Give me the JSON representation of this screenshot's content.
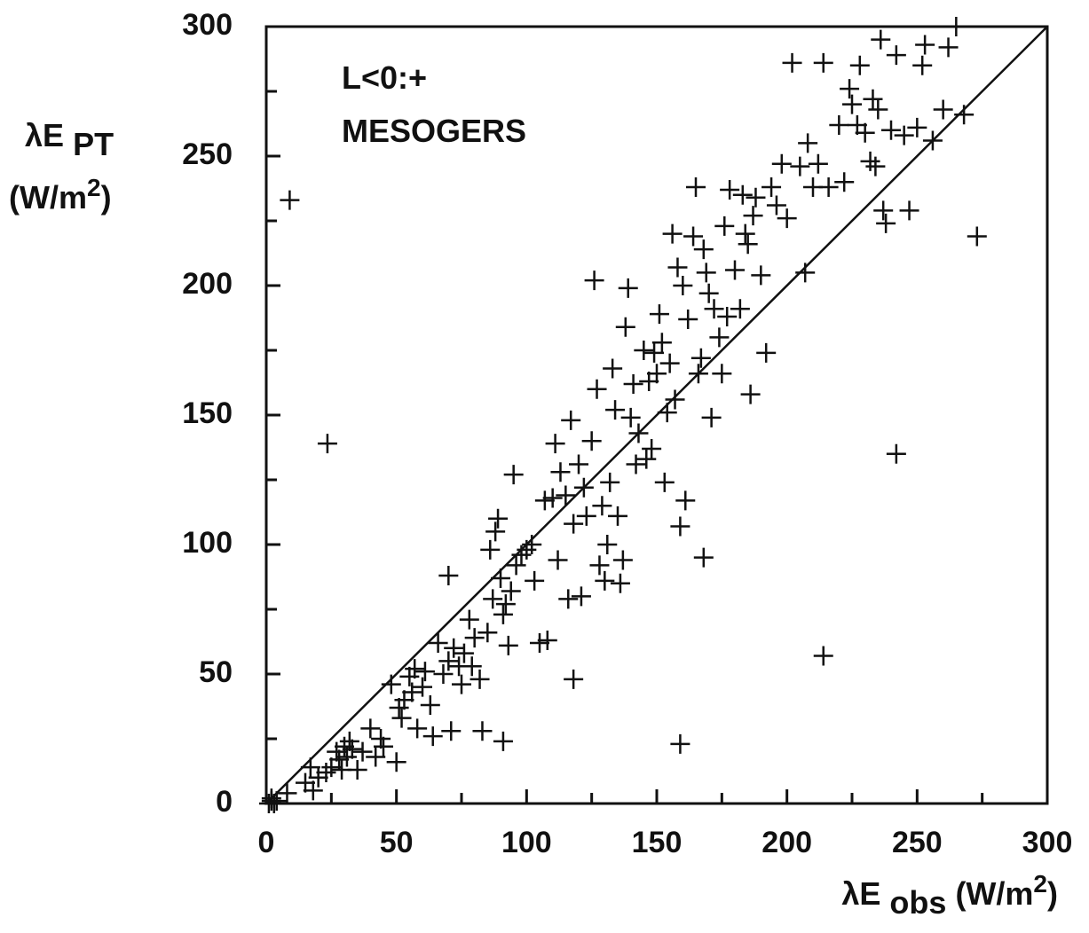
{
  "chart_data": {
    "type": "scatter",
    "annotations": [
      "L<0:+",
      "MESOGERS"
    ],
    "ylabel": [
      "λE",
      "PT",
      "(W/m",
      "2",
      ")"
    ],
    "xlabel": [
      "λE",
      "obs",
      "(W/m",
      "2",
      ")"
    ],
    "color": "#111111",
    "xlim": [
      0,
      300
    ],
    "ylim": [
      0,
      300
    ],
    "xticks": [
      0,
      50,
      100,
      150,
      200,
      250,
      300
    ],
    "yticks": [
      0,
      50,
      100,
      150,
      200,
      250,
      300
    ],
    "xminor_ticks": [
      25,
      75,
      125,
      175,
      225,
      275
    ],
    "yminor_ticks": [
      25,
      75,
      125,
      175,
      225,
      275
    ],
    "x": [
      9,
      23.5,
      242,
      214,
      159,
      273,
      168,
      118,
      1,
      2,
      3,
      4,
      2,
      8,
      15,
      17,
      18,
      20,
      23,
      25,
      27,
      28,
      29,
      30,
      31,
      32,
      33,
      35,
      37,
      40,
      42,
      44,
      45,
      48,
      50,
      51,
      52,
      53,
      55,
      56,
      57,
      58,
      60,
      61,
      63,
      64,
      66,
      68,
      70,
      70,
      71,
      72,
      74,
      75,
      76,
      78,
      79,
      80,
      82,
      83,
      85,
      86,
      87,
      88,
      89,
      90,
      91,
      91,
      92,
      93,
      94,
      95,
      96,
      98,
      100,
      102,
      103,
      105,
      107,
      108,
      110,
      111,
      112,
      113,
      115,
      116,
      117,
      118,
      120,
      121,
      122,
      123,
      125,
      126,
      127,
      128,
      129,
      130,
      131,
      132,
      133,
      134,
      135,
      136,
      137,
      138,
      139,
      140,
      141,
      142,
      143,
      145,
      146,
      147,
      148,
      149,
      150,
      151,
      152,
      153,
      154,
      155,
      156,
      157,
      158,
      159,
      160,
      161,
      162,
      164,
      165,
      166,
      167,
      168,
      169,
      170,
      171,
      172,
      174,
      175,
      176,
      177,
      178,
      180,
      182,
      183,
      184,
      185,
      186,
      187,
      188,
      190,
      192,
      194,
      196,
      198,
      200,
      202,
      205,
      207,
      208,
      210,
      212,
      214,
      216,
      220,
      222,
      224,
      225,
      227,
      228,
      230,
      232,
      233,
      234,
      235,
      236,
      237,
      238,
      240,
      242,
      245,
      247,
      250,
      252,
      253,
      256,
      260,
      262,
      265,
      268
    ],
    "values": [
      233,
      139,
      135,
      57,
      23,
      219,
      95,
      48,
      0,
      1,
      0,
      1,
      2,
      4,
      8,
      14,
      5,
      10,
      12,
      14,
      20,
      17,
      13,
      22,
      18,
      24,
      21,
      13,
      20,
      29,
      18,
      25,
      22,
      46,
      16,
      37,
      33,
      40,
      49,
      43,
      52,
      29,
      45,
      51,
      38,
      26,
      62,
      50,
      55,
      88,
      28,
      60,
      53,
      46,
      58,
      71,
      53,
      64,
      48,
      28,
      66,
      98,
      79,
      105,
      110,
      87,
      73,
      24,
      77,
      61,
      82,
      127,
      92,
      96,
      98,
      100,
      86,
      62,
      117,
      63,
      118,
      139,
      94,
      128,
      119,
      79,
      148,
      108,
      131,
      80,
      122,
      111,
      140,
      202,
      160,
      92,
      115,
      86,
      100,
      124,
      168,
      152,
      111,
      85,
      94,
      184,
      199,
      149,
      162,
      131,
      143,
      175,
      133,
      163,
      137,
      174,
      166,
      189,
      178,
      124,
      151,
      170,
      220,
      156,
      207,
      107,
      200,
      117,
      187,
      219,
      238,
      166,
      172,
      214,
      205,
      197,
      149,
      191,
      180,
      166,
      223,
      188,
      237,
      206,
      191,
      235,
      220,
      216,
      158,
      227,
      234,
      204,
      174,
      238,
      231,
      247,
      226,
      286,
      246,
      205,
      255,
      238,
      247,
      286,
      238,
      262,
      240,
      276,
      270,
      262,
      285,
      259,
      248,
      272,
      246,
      268,
      295,
      229,
      224,
      260,
      289,
      258,
      229,
      261,
      285,
      293,
      256,
      268,
      292,
      300,
      266
    ]
  }
}
